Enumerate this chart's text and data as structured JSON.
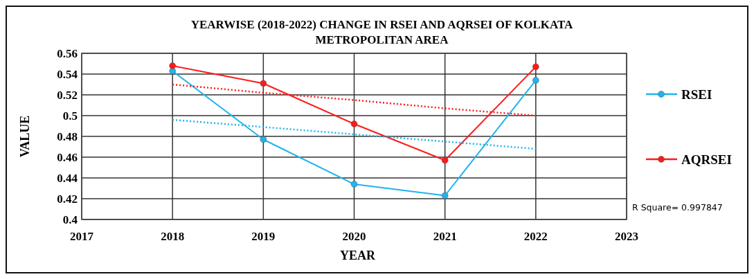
{
  "chart_data": {
    "type": "line",
    "title": "YEARWISE (2018-2022) CHANGE IN RSEI AND AQRSEI OF KOLKATA METROPOLITAN AREA",
    "xlabel": "YEAR",
    "ylabel": "VALUE",
    "x": [
      2018,
      2019,
      2020,
      2021,
      2022
    ],
    "series": [
      {
        "name": "RSEI",
        "color": "#1fb4ec",
        "values": [
          0.543,
          0.477,
          0.434,
          0.423,
          0.534
        ],
        "marker": "circle"
      },
      {
        "name": "AQRSEI",
        "color": "#ff1a1a",
        "values": [
          0.548,
          0.531,
          0.492,
          0.457,
          0.547
        ],
        "marker": "circle"
      },
      {
        "type": "line",
        "color": "#1fb4ec",
        "values": [
          0.496,
          0.489,
          0.482,
          0.475,
          0.468
        ],
        "line_style": "dotted",
        "marker": "none"
      },
      {
        "type": "line",
        "color": "#ff1a1a",
        "values": [
          0.53,
          0.522,
          0.515,
          0.507,
          0.5
        ],
        "line_style": "dotted",
        "marker": "none"
      }
    ],
    "xlim": [
      2017,
      2023
    ],
    "xticks": [
      2017,
      2018,
      2019,
      2020,
      2021,
      2022,
      2023
    ],
    "ylim": [
      0.4,
      0.56
    ],
    "yticks": [
      {
        "value": 0.4,
        "label": "0.4"
      },
      {
        "value": 0.42,
        "label": "0.42"
      },
      {
        "value": 0.44,
        "label": "0.44"
      },
      {
        "value": 0.46,
        "label": "0.46"
      },
      {
        "value": 0.48,
        "label": "0.48"
      },
      {
        "value": 0.5,
        "label": "0.5"
      },
      {
        "value": 0.52,
        "label": "0.52"
      },
      {
        "value": 0.54,
        "label": "0.54"
      },
      {
        "value": 0.56,
        "label": "0.56"
      }
    ],
    "grid": true,
    "legend": "right",
    "line_style": "solid",
    "annotations": [
      "R Square= 0.997847"
    ]
  }
}
